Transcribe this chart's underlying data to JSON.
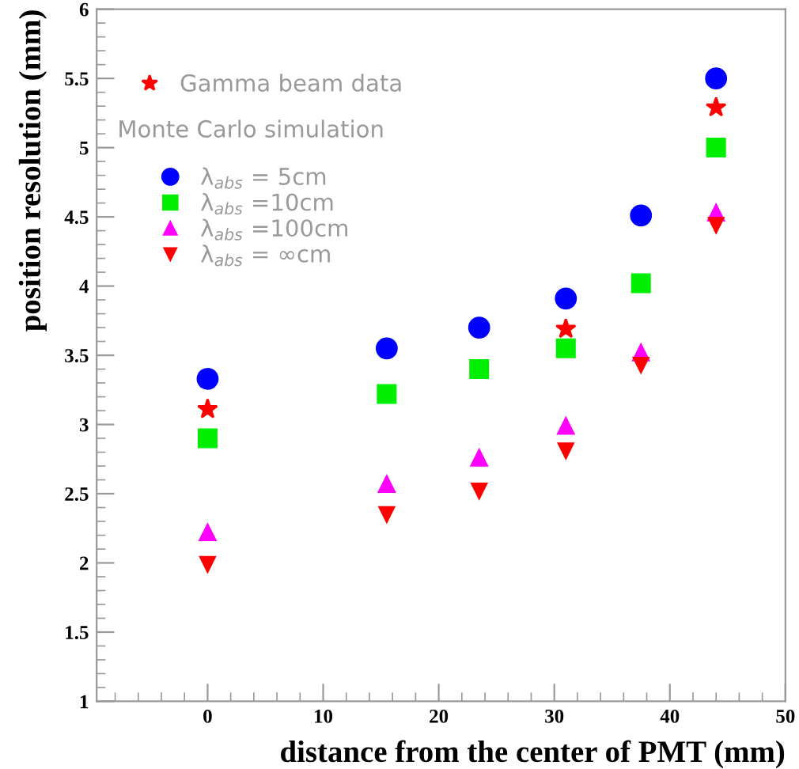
{
  "chart_data": {
    "type": "scatter",
    "xlabel": "distance from the center of PMT (mm)",
    "ylabel": "position resolution (mm)",
    "xlim": [
      -9.6,
      50
    ],
    "ylim": [
      1,
      6
    ],
    "xticks": [
      0,
      10,
      20,
      30,
      40,
      50
    ],
    "yticks": [
      1,
      1.5,
      2,
      2.5,
      3,
      3.5,
      4,
      4.5,
      5,
      5.5,
      6
    ],
    "grid": false,
    "legend": "top left",
    "annotations": [
      "Monte Carlo simulation"
    ],
    "series": [
      {
        "name": "Gamma beam data",
        "color": "#ff0000",
        "marker": "star",
        "x": [
          0,
          31,
          44
        ],
        "values": [
          3.11,
          3.69,
          5.29
        ]
      },
      {
        "name": "λ$_{abs}$ = 5cm",
        "color": "#0000ff",
        "marker": "circle",
        "x": [
          0,
          15.5,
          23.5,
          31,
          37.5,
          44
        ],
        "values": [
          3.33,
          3.55,
          3.7,
          3.91,
          4.51,
          5.5
        ]
      },
      {
        "name": "λ$_{abs}$ =10cm",
        "color": "#00ee00",
        "marker": "square",
        "x": [
          0,
          15.5,
          23.5,
          31,
          37.5,
          44
        ],
        "values": [
          2.9,
          3.22,
          3.4,
          3.55,
          4.02,
          5.0
        ]
      },
      {
        "name": "λ$_{abs}$ =100cm",
        "color": "#ff00ff",
        "marker": "triangle",
        "x": [
          0,
          15.5,
          23.5,
          31,
          37.5,
          44
        ],
        "values": [
          2.22,
          2.57,
          2.76,
          2.99,
          3.52,
          4.53
        ]
      },
      {
        "name": "λ$_{abs}$ = ∞cm",
        "color": "#ff0000",
        "marker": "triangle_down",
        "x": [
          0,
          15.5,
          23.5,
          31,
          37.5,
          44
        ],
        "values": [
          1.99,
          2.35,
          2.52,
          2.81,
          3.43,
          4.44
        ]
      }
    ]
  }
}
